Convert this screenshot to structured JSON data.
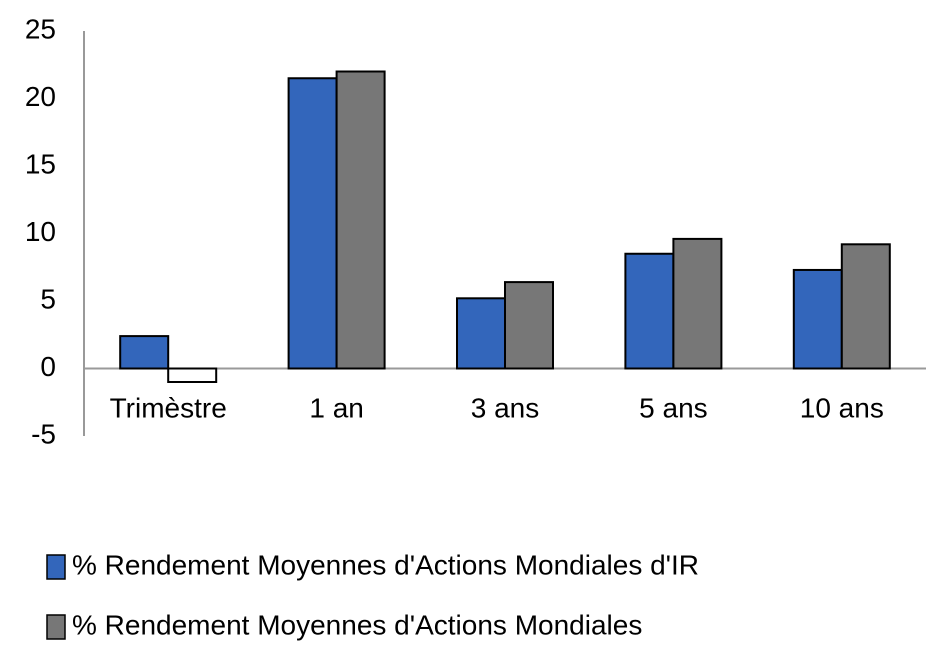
{
  "chart_data": {
    "type": "bar",
    "categories": [
      "Trimèstre",
      "1 an",
      "3 ans",
      "5 ans",
      "10 ans"
    ],
    "series": [
      {
        "name": "% Rendement Moyennes d'Actions Mondiales d'IR",
        "color": "#3366bb",
        "values": [
          2.4,
          21.5,
          5.2,
          8.5,
          7.3
        ]
      },
      {
        "name": "% Rendement Moyennes d'Actions Mondiales",
        "color": "#777777",
        "values": [
          -1.0,
          22.0,
          6.4,
          9.6,
          9.2
        ]
      }
    ],
    "negative_color": "#ffffff",
    "ylim": [
      -5,
      25
    ],
    "yticks": [
      -5,
      0,
      5,
      10,
      15,
      20,
      25
    ],
    "grid": false,
    "legend": "bottom"
  }
}
